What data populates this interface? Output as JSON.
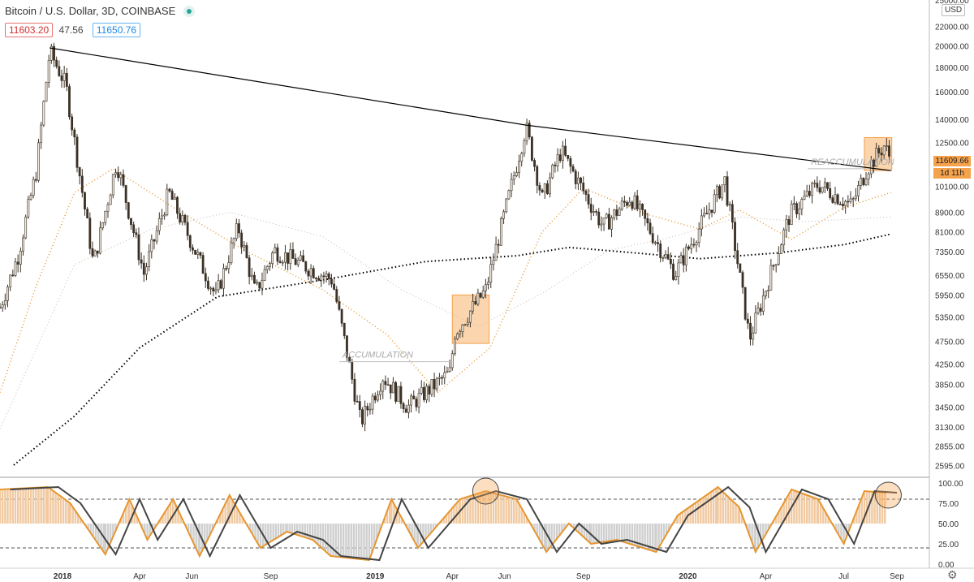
{
  "header": {
    "symbol": "Bitcoin / U.S. Dollar",
    "timeframe": "3D",
    "exchange": "COINBASE",
    "bid": "11603.20",
    "spread": "47.56",
    "ask": "11650.76"
  },
  "price_scale": {
    "currency": "USD",
    "last_price": "11609.66",
    "timer": "1d 11h"
  },
  "colors": {
    "bull": "#f3ece0",
    "bear": "#3b3127",
    "trendline": "#000000",
    "ma_fast": "#e69630",
    "ma_slow": "#000000",
    "highlight": "#f5a24c",
    "osc_line_fast": "#e69630",
    "osc_line_slow": "#444444"
  },
  "chart_data": [
    {
      "type": "candlestick",
      "title": "",
      "x_ticks": [
        "2018",
        "Apr",
        "Jun",
        "Sep",
        "2019",
        "Apr",
        "Jun",
        "Sep",
        "2020",
        "Apr",
        "Jul",
        "Sep"
      ],
      "y_ticks": [
        2595,
        2855,
        3130,
        3450,
        3850,
        4250,
        4750,
        5350,
        5950,
        6550,
        7350,
        8100,
        8900,
        10100,
        11200,
        12500,
        14000,
        16000,
        18000,
        20000,
        22000,
        25000
      ],
      "y_tick_labels": [
        "2595.00",
        "2855.00",
        "3130.00",
        "3450.00",
        "3850.00",
        "4250.00",
        "4750.00",
        "5350.00",
        "5950.00",
        "6550.00",
        "7350.00",
        "8100.00",
        "8900.00",
        "10100.00",
        "",
        "12500.00",
        "14000.00",
        "16000.00",
        "18000.00",
        "20000.00",
        "22000.00",
        "25000.00"
      ],
      "scale": "log",
      "ylim": [
        2450,
        25000
      ],
      "price_path": [
        [
          "2017-10-20",
          5600
        ],
        [
          "2017-11-10",
          7200
        ],
        [
          "2017-12-01",
          10800
        ],
        [
          "2017-12-17",
          19500
        ],
        [
          "2018-01-05",
          16500
        ],
        [
          "2018-02-06",
          6900
        ],
        [
          "2018-03-05",
          11400
        ],
        [
          "2018-04-06",
          6600
        ],
        [
          "2018-05-05",
          9800
        ],
        [
          "2018-06-29",
          5900
        ],
        [
          "2018-07-25",
          8300
        ],
        [
          "2018-08-14",
          6000
        ],
        [
          "2018-09-05",
          7400
        ],
        [
          "2018-11-12",
          6400
        ],
        [
          "2018-12-15",
          3200
        ],
        [
          "2019-01-10",
          4000
        ],
        [
          "2019-02-08",
          3450
        ],
        [
          "2019-03-31",
          4100
        ],
        [
          "2019-04-02",
          4900
        ],
        [
          "2019-05-10",
          6100
        ],
        [
          "2019-06-26",
          13500
        ],
        [
          "2019-07-15",
          9500
        ],
        [
          "2019-08-06",
          12000
        ],
        [
          "2019-09-24",
          8300
        ],
        [
          "2019-10-26",
          9600
        ],
        [
          "2019-12-17",
          6600
        ],
        [
          "2020-02-13",
          10400
        ],
        [
          "2020-03-13",
          4800
        ],
        [
          "2020-04-29",
          8800
        ],
        [
          "2020-06-01",
          10200
        ],
        [
          "2020-07-10",
          9200
        ],
        [
          "2020-07-28",
          11000
        ],
        [
          "2020-08-17",
          12300
        ],
        [
          "2020-08-24",
          11609
        ]
      ],
      "trendline": [
        [
          "2017-12-17",
          19800
        ],
        [
          "2019-06-26",
          13600
        ],
        [
          "2020-08-25",
          10900
        ]
      ],
      "ma_slow": [
        [
          "2017-11-05",
          2600
        ],
        [
          "2018-01-15",
          3300
        ],
        [
          "2018-04-01",
          4600
        ],
        [
          "2018-07-01",
          5900
        ],
        [
          "2018-11-01",
          6400
        ],
        [
          "2019-03-01",
          7000
        ],
        [
          "2019-06-15",
          7200
        ],
        [
          "2019-08-15",
          7500
        ],
        [
          "2019-11-01",
          7300
        ],
        [
          "2020-01-15",
          7100
        ],
        [
          "2020-04-15",
          7300
        ],
        [
          "2020-07-01",
          7600
        ],
        [
          "2020-08-25",
          8000
        ]
      ],
      "ma_fast": [
        [
          "2017-10-20",
          3700
        ],
        [
          "2017-12-01",
          6200
        ],
        [
          "2018-01-15",
          9800
        ],
        [
          "2018-03-01",
          11000
        ],
        [
          "2018-05-15",
          9000
        ],
        [
          "2018-08-01",
          7400
        ],
        [
          "2018-11-01",
          6100
        ],
        [
          "2019-01-15",
          4900
        ],
        [
          "2019-03-15",
          3700
        ],
        [
          "2019-05-15",
          4600
        ],
        [
          "2019-07-15",
          8100
        ],
        [
          "2019-09-01",
          10000
        ],
        [
          "2019-11-15",
          8800
        ],
        [
          "2020-01-15",
          8200
        ],
        [
          "2020-03-01",
          9000
        ],
        [
          "2020-05-01",
          7800
        ],
        [
          "2020-07-01",
          9100
        ],
        [
          "2020-08-25",
          9800
        ]
      ],
      "ma_mid": [
        [
          "2017-10-20",
          3100
        ],
        [
          "2018-01-15",
          6900
        ],
        [
          "2018-04-15",
          8200
        ],
        [
          "2018-07-15",
          8900
        ],
        [
          "2018-11-01",
          7900
        ],
        [
          "2019-02-01",
          6100
        ],
        [
          "2019-05-01",
          5100
        ],
        [
          "2019-07-15",
          6000
        ],
        [
          "2019-10-01",
          7400
        ],
        [
          "2019-12-15",
          7900
        ],
        [
          "2020-03-01",
          8700
        ],
        [
          "2020-05-15",
          8500
        ],
        [
          "2020-08-25",
          8700
        ]
      ],
      "annotations": [
        {
          "text": "ACCUMULATION",
          "start": "2018-11-20",
          "end": "2019-04-01",
          "level": 4300
        },
        {
          "text": "REACCUMULATION",
          "start": "2020-05-20",
          "end": "2020-07-28",
          "level": 11000
        }
      ],
      "highlight_boxes": [
        {
          "start": "2019-04-01",
          "end": "2019-05-14",
          "low": 4700,
          "high": 5950
        },
        {
          "start": "2020-07-25",
          "end": "2020-08-26",
          "low": 10900,
          "high": 12800
        }
      ]
    },
    {
      "type": "line",
      "title": "",
      "y_ticks": [
        0,
        25,
        50,
        75,
        100
      ],
      "y_tick_labels": [
        "0.00",
        "25.00",
        "50.00",
        "75.00",
        "100.00"
      ],
      "ylim": [
        -5,
        105
      ],
      "levels": [
        20,
        80
      ],
      "series": [
        {
          "name": "",
          "values": [
            [
              "2017-10-20",
              92
            ],
            [
              "2017-12-15",
              95
            ],
            [
              "2018-01-10",
              75
            ],
            [
              "2018-02-20",
              12
            ],
            [
              "2018-03-20",
              80
            ],
            [
              "2018-04-10",
              30
            ],
            [
              "2018-05-10",
              80
            ],
            [
              "2018-06-10",
              10
            ],
            [
              "2018-07-15",
              85
            ],
            [
              "2018-08-20",
              20
            ],
            [
              "2018-09-20",
              40
            ],
            [
              "2018-10-20",
              30
            ],
            [
              "2018-11-10",
              10
            ],
            [
              "2018-12-25",
              5
            ],
            [
              "2019-01-20",
              80
            ],
            [
              "2019-02-20",
              20
            ],
            [
              "2019-04-10",
              80
            ],
            [
              "2019-05-10",
              90
            ],
            [
              "2019-06-15",
              80
            ],
            [
              "2019-07-20",
              15
            ],
            [
              "2019-08-15",
              50
            ],
            [
              "2019-09-10",
              25
            ],
            [
              "2019-10-10",
              30
            ],
            [
              "2019-11-25",
              15
            ],
            [
              "2019-12-20",
              60
            ],
            [
              "2020-02-05",
              95
            ],
            [
              "2020-03-01",
              70
            ],
            [
              "2020-03-20",
              15
            ],
            [
              "2020-05-01",
              92
            ],
            [
              "2020-06-01",
              80
            ],
            [
              "2020-07-01",
              25
            ],
            [
              "2020-07-25",
              90
            ],
            [
              "2020-08-20",
              88
            ]
          ]
        }
      ],
      "circles": [
        {
          "date": "2019-05-10",
          "value": 90
        },
        {
          "date": "2020-08-22",
          "value": 85
        }
      ]
    }
  ]
}
